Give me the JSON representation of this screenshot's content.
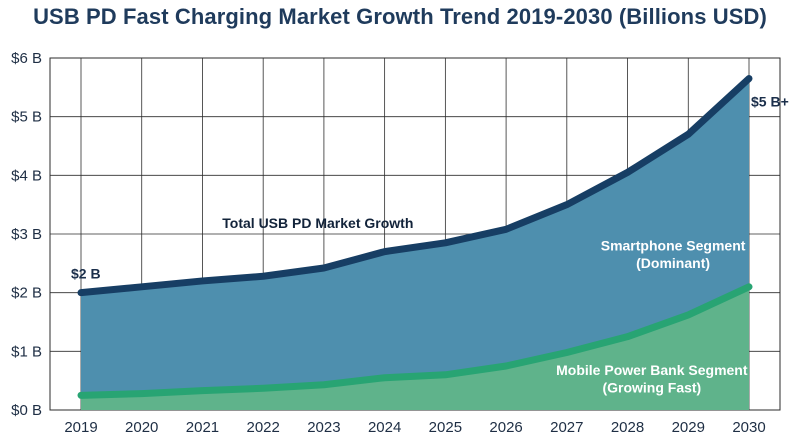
{
  "chart_data": {
    "type": "area",
    "title": "USB PD Fast Charging Market Growth Trend 2019-2030 (Billions USD)",
    "x": [
      "2019",
      "2020",
      "2021",
      "2022",
      "2023",
      "2024",
      "2025",
      "2026",
      "2027",
      "2028",
      "2029",
      "2030"
    ],
    "y_ticks": [
      "$0 B",
      "$1 B",
      "$2 B",
      "$3 B",
      "$4 B",
      "$5 B",
      "$6 B"
    ],
    "ylim": [
      0,
      6
    ],
    "grid": true,
    "legend": "none",
    "series": [
      {
        "name": "Total USB PD Market Growth",
        "values": [
          2.0,
          2.1,
          2.2,
          2.28,
          2.42,
          2.7,
          2.85,
          3.08,
          3.5,
          4.05,
          4.7,
          5.65
        ],
        "line_color": "#173e64",
        "fill_color": "#4e8fae"
      },
      {
        "name": "Mobile Power Bank Segment (Growing Fast)",
        "values": [
          0.25,
          0.28,
          0.33,
          0.37,
          0.43,
          0.55,
          0.6,
          0.75,
          0.98,
          1.25,
          1.62,
          2.1
        ],
        "line_color": "#28a473",
        "fill_color": "#5fb38b"
      }
    ],
    "annotations": {
      "start_value": "$2 B",
      "end_value": "$5 B+",
      "total_label": "Total USB PD Market Growth",
      "smartphone_line1": "Smartphone Segment",
      "smartphone_line2": "(Dominant)",
      "powerbank_line1": "Mobile Power Bank Segment",
      "powerbank_line2": "(Growing Fast)"
    }
  }
}
